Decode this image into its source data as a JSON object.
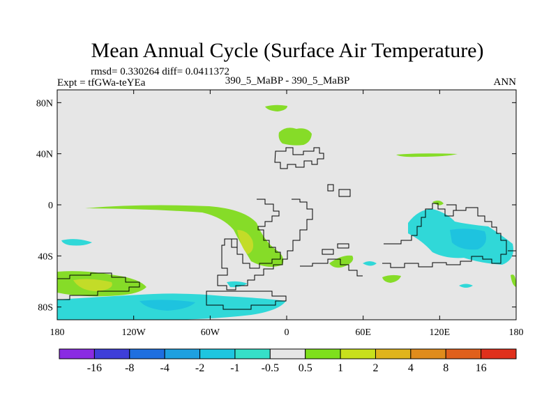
{
  "title": "Mean Annual Cycle (Surface Air Temperature)",
  "stats": "rmsd= 0.330264 diff= 0.0411372",
  "experiment": "Expt = tfGWa-teYEa",
  "comparison": "390_5_MaBP - 390_5_MaBP",
  "season": "ANN",
  "y_ticks": [
    "80N",
    "40N",
    "0",
    "40S",
    "80S"
  ],
  "x_ticks": [
    "180",
    "120W",
    "60W",
    "0",
    "60E",
    "120E",
    "180"
  ],
  "colorbar": {
    "labels": [
      "-16",
      "-8",
      "-4",
      "-2",
      "-1",
      "-0.5",
      "0.5",
      "1",
      "2",
      "4",
      "8",
      "16"
    ],
    "colors": [
      "#8a2be2",
      "#3e3ed9",
      "#1f6fe0",
      "#1ea0e0",
      "#1ec6e0",
      "#36e0c8",
      "#e6e6e6",
      "#7ee01c",
      "#c8e01c",
      "#e0b41c",
      "#e08c1c",
      "#e0601c",
      "#e0301c"
    ]
  },
  "colors": {
    "background": "#e6e6e6",
    "positive_small": "#86dc28",
    "positive_mid": "#c3dc28",
    "negative_small": "#30d8d8",
    "negative_mid": "#1ec3df",
    "negative_strong": "#2ab0e0"
  }
}
